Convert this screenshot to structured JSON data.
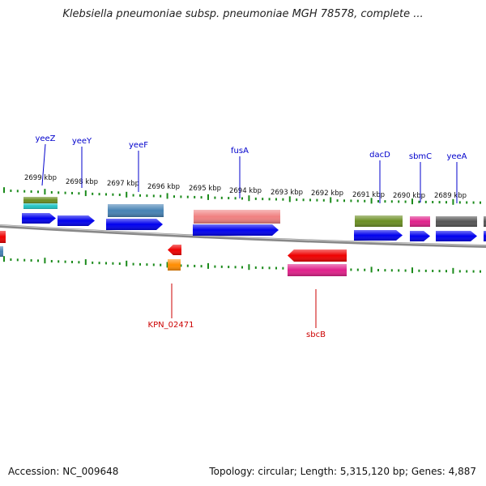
{
  "title": "Klebsiella pneumoniae subsp. pneumoniae MGH 78578, complete ...",
  "footer": {
    "accession": "Accession: NC_009648",
    "stats": "Topology: circular; Length: 5,315,120 bp; Genes: 4,887"
  },
  "colors": {
    "blue": "#0000ee",
    "red": "#ee0000",
    "olive": "#6b8e23",
    "teal": "#20c4c4",
    "steel": "#4682b4",
    "pink": "#f08080",
    "magenta": "#e0208a",
    "gray": "#555555",
    "orange": "#ff8c00",
    "tick": "#1a8a1a",
    "label_top": "#0000cc",
    "label_bottom": "#cc0000"
  },
  "kbp_ticks": [
    "2699 kbp",
    "2698 kbp",
    "2697 kbp",
    "2696 kbp",
    "2695 kbp",
    "2694 kbp",
    "2693 kbp",
    "2692 kbp",
    "2691 kbp",
    "2690 kbp",
    "2689 kbp"
  ],
  "genes_top": [
    "yeeZ",
    "yeeY",
    "yeeF",
    "fusA",
    "dacD",
    "sbmC",
    "yeeA"
  ],
  "genes_bottom": [
    "KPN_02471",
    "sbcB"
  ]
}
